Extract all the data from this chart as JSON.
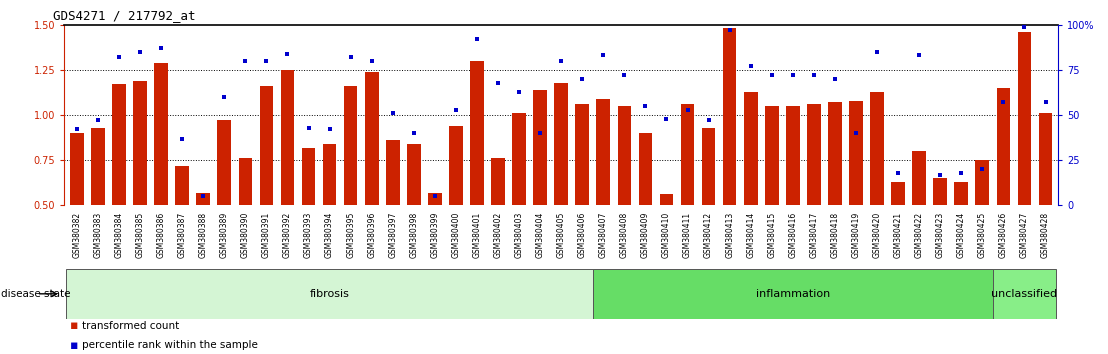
{
  "title": "GDS4271 / 217792_at",
  "samples": [
    "GSM380382",
    "GSM380383",
    "GSM380384",
    "GSM380385",
    "GSM380386",
    "GSM380387",
    "GSM380388",
    "GSM380389",
    "GSM380390",
    "GSM380391",
    "GSM380392",
    "GSM380393",
    "GSM380394",
    "GSM380395",
    "GSM380396",
    "GSM380397",
    "GSM380398",
    "GSM380399",
    "GSM380400",
    "GSM380401",
    "GSM380402",
    "GSM380403",
    "GSM380404",
    "GSM380405",
    "GSM380406",
    "GSM380407",
    "GSM380408",
    "GSM380409",
    "GSM380410",
    "GSM380411",
    "GSM380412",
    "GSM380413",
    "GSM380414",
    "GSM380415",
    "GSM380416",
    "GSM380417",
    "GSM380418",
    "GSM380419",
    "GSM380420",
    "GSM380421",
    "GSM380422",
    "GSM380423",
    "GSM380424",
    "GSM380425",
    "GSM380426",
    "GSM380427",
    "GSM380428"
  ],
  "bar_values": [
    0.9,
    0.93,
    1.17,
    1.19,
    1.29,
    0.72,
    0.57,
    0.97,
    0.76,
    1.16,
    1.25,
    0.82,
    0.84,
    1.16,
    1.24,
    0.86,
    0.84,
    0.57,
    0.94,
    1.3,
    0.76,
    1.01,
    1.14,
    1.18,
    1.06,
    1.09,
    1.05,
    0.9,
    0.56,
    1.06,
    0.93,
    1.48,
    1.13,
    1.05,
    1.05,
    1.06,
    1.07,
    1.08,
    1.13,
    0.63,
    0.8,
    0.65,
    0.63,
    0.75,
    1.15,
    1.46,
    1.01
  ],
  "dot_values_pct": [
    42,
    47,
    82,
    85,
    87,
    37,
    5,
    60,
    80,
    80,
    84,
    43,
    42,
    82,
    80,
    51,
    40,
    5,
    53,
    92,
    68,
    63,
    40,
    80,
    70,
    83,
    72,
    55,
    48,
    53,
    47,
    97,
    77,
    72,
    72,
    72,
    70,
    40,
    85,
    18,
    83,
    17,
    18,
    20,
    57,
    99,
    57
  ],
  "disease_groups": [
    {
      "label": "fibrosis",
      "start": 0,
      "end": 24,
      "color": "#d4f5d4"
    },
    {
      "label": "inflammation",
      "start": 25,
      "end": 43,
      "color": "#66dd66"
    },
    {
      "label": "unclassified",
      "start": 44,
      "end": 46,
      "color": "#88ee88"
    }
  ],
  "bar_color": "#cc2200",
  "dot_color": "#0000cc",
  "ylim_left": [
    0.5,
    1.5
  ],
  "ylim_right": [
    0,
    100
  ],
  "yticks_left": [
    0.5,
    0.75,
    1.0,
    1.25,
    1.5
  ],
  "yticks_right": [
    0,
    25,
    50,
    75,
    100
  ],
  "grid_values": [
    0.75,
    1.0,
    1.25
  ],
  "left_axis_color": "#cc2200",
  "right_axis_color": "#0000cc",
  "legend_items": [
    "transformed count",
    "percentile rank within the sample"
  ],
  "disease_state_label": "disease state",
  "background_color": "#ffffff",
  "tick_label_size": 5.5,
  "bar_width": 0.65
}
